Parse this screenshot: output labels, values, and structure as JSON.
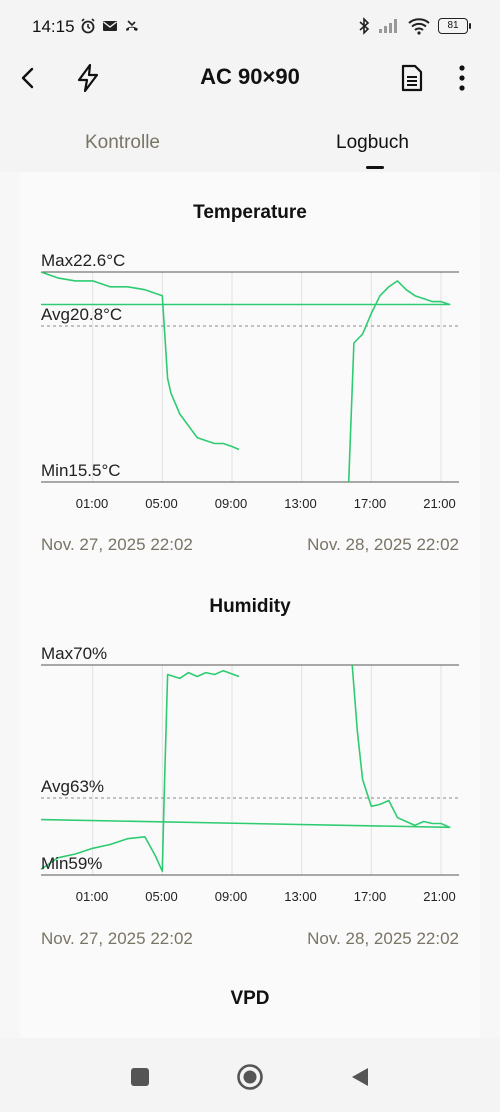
{
  "status_bar": {
    "time": "14:15",
    "battery": "81"
  },
  "app_bar": {
    "title": "AC 90×90"
  },
  "tabs": [
    {
      "label": "Kontrolle",
      "active": false
    },
    {
      "label": "Logbuch",
      "active": true
    }
  ],
  "charts": [
    {
      "title": "Temperature",
      "max_label": "Max22.6°C",
      "avg_label": "Avg20.8°C",
      "min_label": "Min15.5°C",
      "x_ticks": [
        "01:00",
        "05:00",
        "09:00",
        "13:00",
        "17:00",
        "21:00"
      ],
      "start_date": "Nov. 27, 2025 22:02",
      "end_date": "Nov. 28, 2025 22:02"
    },
    {
      "title": "Humidity",
      "max_label": "Max70%",
      "avg_label": "Avg63%",
      "min_label": "Min59%",
      "x_ticks": [
        "01:00",
        "05:00",
        "09:00",
        "13:00",
        "17:00",
        "21:00"
      ],
      "start_date": "Nov. 27, 2025 22:02",
      "end_date": "Nov. 28, 2025 22:02"
    },
    {
      "title": "VPD"
    }
  ],
  "chart_data": [
    {
      "type": "line",
      "title": "Temperature",
      "ylabel": "",
      "xlabel": "",
      "x_range": [
        "Nov. 27, 2025 22:02",
        "Nov. 28, 2025 22:02"
      ],
      "ylim": [
        15.5,
        22.6
      ],
      "reference_lines": {
        "max": 22.6,
        "avg": 20.8,
        "min": 15.5
      },
      "series": [
        {
          "color": "#2ecc71",
          "segments": [
            [
              [
                22.0,
                22.6
              ],
              [
                23.0,
                22.4
              ],
              [
                0.0,
                22.3
              ],
              [
                1.0,
                22.3
              ],
              [
                2.0,
                22.1
              ],
              [
                3.0,
                22.1
              ],
              [
                4.0,
                22.0
              ],
              [
                5.0,
                21.8
              ],
              [
                5.3,
                19.0
              ],
              [
                5.5,
                18.5
              ],
              [
                6.0,
                17.8
              ],
              [
                6.5,
                17.4
              ],
              [
                7.0,
                17.0
              ],
              [
                7.5,
                16.9
              ],
              [
                8.0,
                16.8
              ],
              [
                8.5,
                16.8
              ],
              [
                9.0,
                16.7
              ],
              [
                9.4,
                16.6
              ]
            ],
            [
              [
                15.7,
                15.5
              ],
              [
                16.0,
                20.2
              ],
              [
                16.5,
                20.5
              ],
              [
                17.0,
                21.2
              ],
              [
                17.5,
                21.8
              ],
              [
                18.0,
                22.1
              ],
              [
                18.5,
                22.3
              ],
              [
                19.0,
                22.0
              ],
              [
                19.5,
                21.8
              ],
              [
                20.0,
                21.7
              ],
              [
                20.5,
                21.6
              ],
              [
                21.0,
                21.6
              ],
              [
                21.5,
                21.5
              ],
              [
                22.0,
                21.5
              ]
            ]
          ]
        }
      ]
    },
    {
      "type": "line",
      "title": "Humidity",
      "ylabel": "",
      "xlabel": "",
      "x_range": [
        "Nov. 27, 2025 22:02",
        "Nov. 28, 2025 22:02"
      ],
      "ylim": [
        59,
        70
      ],
      "reference_lines": {
        "max": 70,
        "avg": 63,
        "min": 59
      },
      "series": [
        {
          "color": "#2ecc71",
          "segments": [
            [
              [
                22.0,
                59.3
              ],
              [
                23.0,
                59.9
              ],
              [
                0.0,
                60.1
              ],
              [
                1.0,
                60.4
              ],
              [
                2.0,
                60.6
              ],
              [
                3.0,
                60.9
              ],
              [
                4.0,
                61.0
              ],
              [
                4.6,
                60.0
              ],
              [
                5.0,
                59.2
              ],
              [
                5.1,
                63.0
              ],
              [
                5.3,
                69.5
              ],
              [
                6.0,
                69.3
              ],
              [
                6.5,
                69.6
              ],
              [
                7.0,
                69.4
              ],
              [
                7.5,
                69.6
              ],
              [
                8.0,
                69.5
              ],
              [
                8.5,
                69.7
              ],
              [
                9.4,
                69.4
              ]
            ],
            [
              [
                15.9,
                70.0
              ],
              [
                16.2,
                66.5
              ],
              [
                16.5,
                64.0
              ],
              [
                17.0,
                62.6
              ],
              [
                17.5,
                62.7
              ],
              [
                18.0,
                62.9
              ],
              [
                18.5,
                62.0
              ],
              [
                19.0,
                61.8
              ],
              [
                19.5,
                61.6
              ],
              [
                20.0,
                61.8
              ],
              [
                20.5,
                61.7
              ],
              [
                21.0,
                61.7
              ],
              [
                21.5,
                61.5
              ],
              [
                22.0,
                61.9
              ]
            ]
          ]
        }
      ]
    }
  ]
}
